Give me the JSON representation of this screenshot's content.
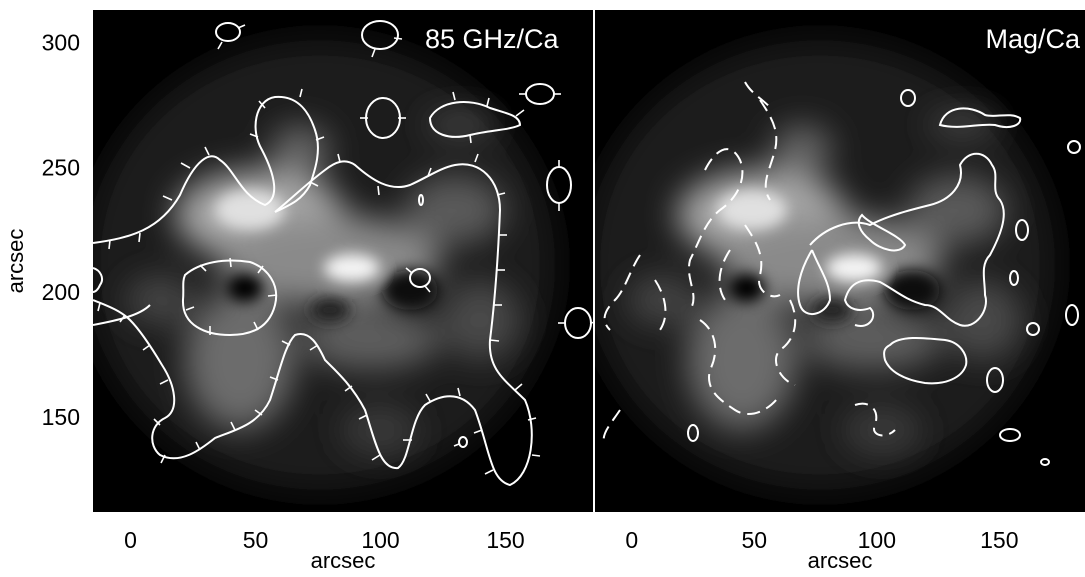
{
  "chart_data": [
    {
      "type": "heatmap",
      "panel_label": "85 GHz/Ca",
      "xlabel": "arcsec",
      "ylabel": "arcsec",
      "xlim": [
        -15,
        185
      ],
      "ylim": [
        112,
        313
      ],
      "x_ticks": [
        0,
        50,
        100,
        150
      ],
      "y_ticks": [
        150,
        200,
        250,
        300
      ],
      "colormap": "grayscale",
      "overlay": "solid white contours with inward tick marks",
      "bright_features": [
        {
          "x": 40,
          "y": 225,
          "intensity": 0.9
        },
        {
          "x": 92,
          "y": 208,
          "intensity": 1.0
        },
        {
          "x": 45,
          "y": 170,
          "intensity": 0.6
        },
        {
          "x": 65,
          "y": 235,
          "intensity": 0.6
        },
        {
          "x": 120,
          "y": 215,
          "intensity": 0.55
        },
        {
          "x": 100,
          "y": 175,
          "intensity": 0.5
        },
        {
          "x": 150,
          "y": 200,
          "intensity": 0.45
        }
      ],
      "dark_features": [
        {
          "x": 45,
          "y": 200
        },
        {
          "x": 110,
          "y": 200
        }
      ]
    },
    {
      "type": "heatmap",
      "panel_label": "Mag/Ca",
      "xlabel": "arcsec",
      "xlim": [
        -15,
        185
      ],
      "ylim": [
        112,
        313
      ],
      "x_ticks": [
        0,
        50,
        100,
        150
      ],
      "colormap": "grayscale",
      "overlay": "solid and dashed white magnetogram contours"
    }
  ]
}
